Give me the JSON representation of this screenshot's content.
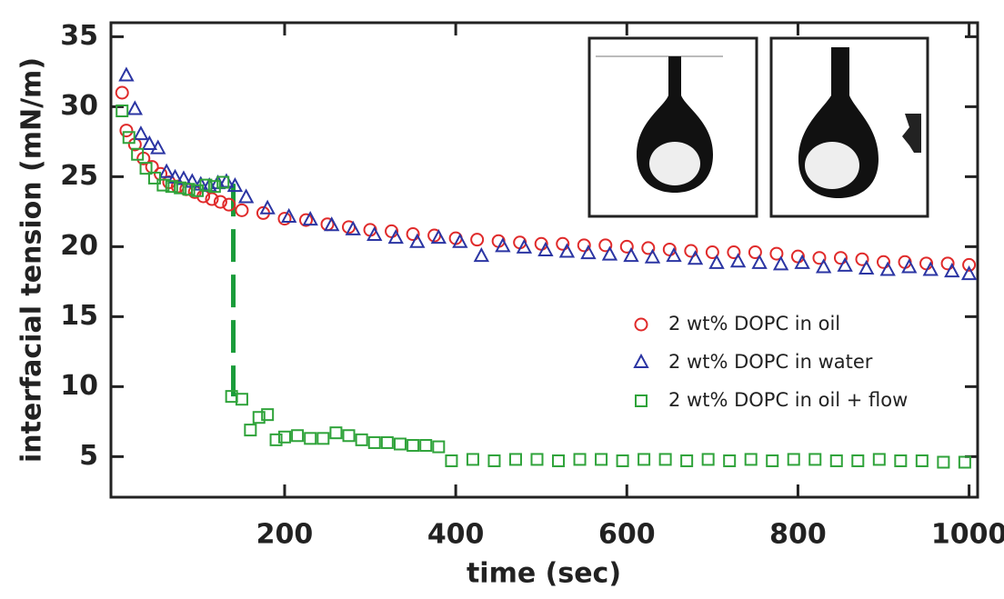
{
  "chart_data": {
    "type": "scatter",
    "xlabel": "time (sec)",
    "ylabel": "interfacial tension (mN/m)",
    "xlim": [
      -3,
      1010
    ],
    "ylim": [
      2.1,
      36
    ],
    "xticks": [
      200,
      400,
      600,
      800,
      1000
    ],
    "yticks": [
      5,
      10,
      15,
      20,
      25,
      30,
      35
    ],
    "series": [
      {
        "name": "2 wt% DOPC in oil",
        "color": "#e02a2a",
        "marker": "circle",
        "x": [
          10,
          15,
          25,
          35,
          45,
          55,
          65,
          75,
          85,
          95,
          105,
          115,
          125,
          135,
          150,
          175,
          200,
          225,
          250,
          275,
          300,
          325,
          350,
          375,
          400,
          425,
          450,
          475,
          500,
          525,
          550,
          575,
          600,
          625,
          650,
          675,
          700,
          725,
          750,
          775,
          800,
          825,
          850,
          875,
          900,
          925,
          950,
          975,
          1000
        ],
        "values": [
          31.0,
          28.3,
          27.3,
          26.3,
          25.7,
          25.2,
          24.6,
          24.3,
          24.1,
          23.9,
          23.6,
          23.4,
          23.2,
          23.0,
          22.6,
          22.4,
          22.0,
          21.9,
          21.6,
          21.4,
          21.2,
          21.1,
          20.9,
          20.8,
          20.6,
          20.5,
          20.4,
          20.3,
          20.2,
          20.2,
          20.1,
          20.1,
          20.0,
          19.9,
          19.8,
          19.7,
          19.6,
          19.6,
          19.6,
          19.5,
          19.3,
          19.2,
          19.2,
          19.1,
          18.9,
          18.9,
          18.8,
          18.8,
          18.7
        ]
      },
      {
        "name": "2 wt% DOPC in water",
        "color": "#2b35a3",
        "marker": "triangle",
        "x": [
          15,
          25,
          32,
          42,
          52,
          62,
          72,
          82,
          92,
          102,
          112,
          122,
          132,
          142,
          155,
          180,
          205,
          230,
          255,
          280,
          305,
          330,
          355,
          380,
          405,
          430,
          455,
          480,
          505,
          530,
          555,
          580,
          605,
          630,
          655,
          680,
          705,
          730,
          755,
          780,
          805,
          830,
          855,
          880,
          905,
          930,
          955,
          980,
          1000
        ],
        "values": [
          32.2,
          29.8,
          28.0,
          27.3,
          27.0,
          25.3,
          24.9,
          24.8,
          24.6,
          24.4,
          24.3,
          24.5,
          24.6,
          24.3,
          23.5,
          22.7,
          22.1,
          21.9,
          21.5,
          21.2,
          20.8,
          20.6,
          20.3,
          20.6,
          20.3,
          19.3,
          20.0,
          19.9,
          19.7,
          19.6,
          19.5,
          19.4,
          19.3,
          19.2,
          19.3,
          19.1,
          18.8,
          18.9,
          18.8,
          18.7,
          18.8,
          18.5,
          18.6,
          18.4,
          18.3,
          18.5,
          18.3,
          18.2,
          18.0
        ]
      },
      {
        "name": "2 wt% DOPC in oil + flow",
        "color": "#2fa33a",
        "marker": "square",
        "x": [
          10,
          18,
          28,
          38,
          48,
          58,
          68,
          78,
          88,
          98,
          108,
          118,
          128,
          138,
          150,
          160,
          170,
          180,
          190,
          200,
          215,
          230,
          245,
          260,
          275,
          290,
          305,
          320,
          335,
          350,
          365,
          380,
          395,
          420,
          445,
          470,
          495,
          520,
          545,
          570,
          595,
          620,
          645,
          670,
          695,
          720,
          745,
          770,
          795,
          820,
          845,
          870,
          895,
          920,
          945,
          970,
          995
        ],
        "values": [
          29.7,
          27.8,
          26.6,
          25.6,
          24.9,
          24.4,
          24.3,
          24.2,
          24.1,
          24.0,
          24.4,
          24.3,
          24.6,
          9.3,
          9.1,
          6.9,
          7.8,
          8.0,
          6.2,
          6.4,
          6.5,
          6.3,
          6.3,
          6.7,
          6.5,
          6.2,
          6.0,
          6.0,
          5.9,
          5.8,
          5.8,
          5.7,
          4.7,
          4.8,
          4.7,
          4.8,
          4.8,
          4.7,
          4.8,
          4.8,
          4.7,
          4.8,
          4.8,
          4.7,
          4.8,
          4.7,
          4.8,
          4.7,
          4.8,
          4.8,
          4.7,
          4.7,
          4.8,
          4.7,
          4.7,
          4.6,
          4.6
        ]
      }
    ],
    "jump_line": {
      "x": 140,
      "y": [
        24.5,
        9.3
      ],
      "color": "#1a9c3a"
    }
  }
}
